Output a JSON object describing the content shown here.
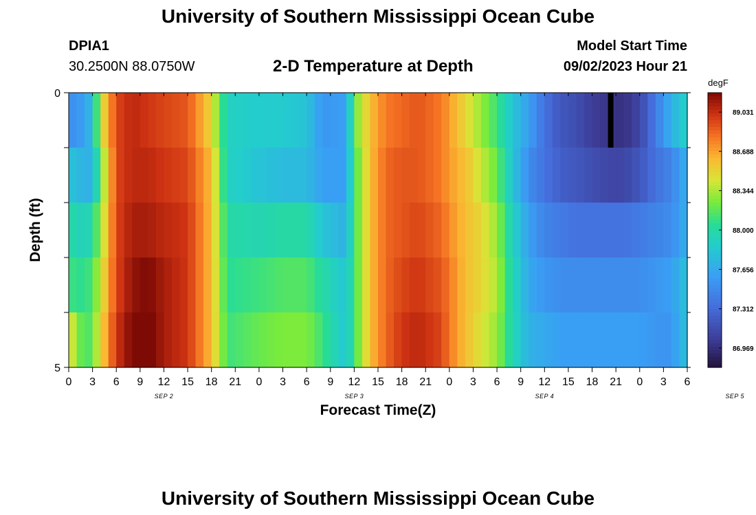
{
  "header": {
    "title": "University of Southern Mississippi Ocean Cube",
    "station": "DPIA1",
    "coords": "30.2500N  88.0750W",
    "subtitle": "2-D Temperature at Depth",
    "model_label": "Model Start Time",
    "model_time": "09/02/2023 Hour 21"
  },
  "footer": {
    "title": "University of Southern Mississippi Ocean Cube"
  },
  "chart_data": {
    "type": "heatmap",
    "title": "2-D Temperature at Depth",
    "xlabel": "Forecast Time(Z)",
    "ylabel": "Depth (ft)",
    "x_ticks": [
      "0",
      "3",
      "6",
      "9",
      "12",
      "15",
      "18",
      "21",
      "0",
      "3",
      "6",
      "9",
      "12",
      "15",
      "18",
      "21",
      "0",
      "3",
      "6",
      "9",
      "12",
      "15",
      "18",
      "21",
      "0",
      "3",
      "6"
    ],
    "date_labels": [
      "SEP 2",
      "SEP 3",
      "SEP 4",
      "SEP 5"
    ],
    "y_ticks": [
      "0",
      "5"
    ],
    "ylim": [
      0,
      5
    ],
    "depth_levels": [
      0,
      1,
      2,
      3,
      4,
      5
    ],
    "colorbar": {
      "unit": "degF",
      "ticks": [
        "89.031",
        "88.688",
        "88.344",
        "88.000",
        "87.656",
        "87.312",
        "86.969"
      ],
      "range": [
        86.8,
        89.2
      ]
    },
    "key_times_hours": [
      0,
      2,
      3,
      4,
      6,
      8,
      10,
      12,
      15,
      18,
      20,
      24,
      27,
      30,
      32,
      35,
      36,
      38,
      40,
      42,
      44,
      47,
      48,
      50,
      52,
      54,
      56,
      58,
      60,
      62,
      64,
      66,
      68,
      70,
      72,
      74,
      76,
      78
    ],
    "temperature_degF": [
      [
        87.5,
        87.6,
        87.8,
        88.4,
        88.95,
        89.05,
        89.0,
        88.95,
        88.9,
        88.5,
        87.9,
        87.85,
        87.85,
        87.8,
        87.55,
        87.6,
        88.2,
        88.6,
        88.8,
        88.85,
        88.9,
        88.8,
        88.7,
        88.5,
        88.3,
        88.1,
        87.8,
        87.6,
        87.35,
        87.2,
        87.15,
        87.05,
        87.0,
        86.98,
        87.1,
        87.4,
        87.7,
        87.9
      ],
      [
        87.8,
        87.7,
        87.7,
        88.2,
        88.95,
        89.05,
        89.05,
        89.0,
        88.95,
        88.6,
        87.9,
        87.8,
        87.75,
        87.75,
        87.6,
        87.6,
        88.1,
        88.6,
        88.85,
        88.9,
        88.9,
        88.8,
        88.7,
        88.6,
        88.4,
        88.2,
        87.8,
        87.5,
        87.35,
        87.25,
        87.2,
        87.15,
        87.1,
        87.1,
        87.2,
        87.35,
        87.45,
        87.7
      ],
      [
        88.0,
        87.9,
        88.0,
        88.3,
        88.95,
        89.1,
        89.1,
        89.05,
        89.0,
        88.6,
        88.0,
        87.95,
        88.0,
        88.0,
        87.8,
        87.7,
        88.1,
        88.6,
        88.85,
        88.9,
        88.95,
        88.85,
        88.75,
        88.6,
        88.5,
        88.3,
        87.9,
        87.6,
        87.45,
        87.4,
        87.35,
        87.35,
        87.35,
        87.35,
        87.4,
        87.45,
        87.5,
        87.7
      ],
      [
        88.1,
        88.05,
        88.15,
        88.4,
        88.95,
        89.15,
        89.2,
        89.1,
        89.0,
        88.6,
        88.05,
        88.1,
        88.15,
        88.15,
        88.0,
        87.8,
        88.1,
        88.6,
        88.85,
        88.95,
        89.0,
        88.9,
        88.8,
        88.6,
        88.5,
        88.35,
        87.95,
        87.65,
        87.55,
        87.5,
        87.5,
        87.5,
        87.5,
        87.5,
        87.5,
        87.55,
        87.6,
        87.8
      ],
      [
        88.5,
        88.1,
        88.2,
        88.5,
        89.0,
        89.2,
        89.25,
        89.1,
        89.0,
        88.6,
        88.1,
        88.2,
        88.25,
        88.25,
        88.1,
        87.8,
        88.1,
        88.6,
        88.85,
        89.0,
        89.05,
        88.95,
        88.8,
        88.6,
        88.45,
        88.3,
        87.95,
        87.7,
        87.65,
        87.6,
        87.6,
        87.6,
        87.6,
        87.6,
        87.6,
        87.55,
        87.55,
        87.8
      ]
    ],
    "notes": {
      "anomaly": {
        "time_hours": 68.5,
        "depth_row": 0,
        "color": "#000000"
      }
    }
  }
}
